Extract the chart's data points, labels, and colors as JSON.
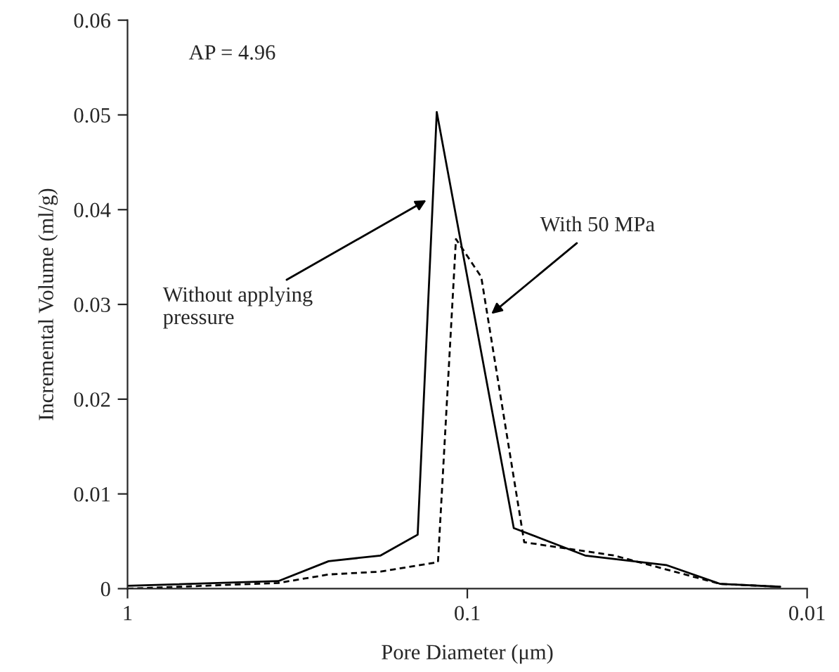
{
  "chart_data": {
    "type": "line",
    "xlabel": "Pore Diameter (μm)",
    "ylabel": "Incremental Volume (ml/g)",
    "log": "x",
    "xlim": [
      1,
      0.01
    ],
    "xticks": [
      1,
      0.1,
      0.01
    ],
    "ylim": [
      0,
      0.06
    ],
    "yticks": [
      0,
      0.01,
      0.02,
      0.03,
      0.04,
      0.05,
      0.06
    ],
    "grid": false,
    "marker": "none",
    "series": [
      {
        "color": "#000000",
        "line_style": "solid",
        "x": [
          1,
          0.36,
          0.256,
          0.18,
          0.14,
          0.123,
          0.073,
          0.045,
          0.026,
          0.018,
          0.012
        ],
        "values": [
          0.0003,
          0.0008,
          0.0029,
          0.0035,
          0.0057,
          0.0503,
          0.0064,
          0.0035,
          0.0025,
          0.0005,
          0.0002
        ]
      },
      {
        "color": "#000000",
        "line_style": "dashed",
        "x": [
          1,
          0.36,
          0.256,
          0.18,
          0.122,
          0.108,
          0.091,
          0.068,
          0.037,
          0.018,
          0.012
        ],
        "values": [
          0.0,
          0.0006,
          0.0015,
          0.0018,
          0.0028,
          0.0369,
          0.0329,
          0.0049,
          0.0035,
          0.0005,
          0.0002
        ]
      }
    ],
    "annotations": [
      "AP = 4.96",
      {
        "text": "Without applying\npressure",
        "x": 0.132,
        "y": 0.041
      },
      {
        "text": "With 50 MPa",
        "x": 0.085,
        "y": 0.029
      }
    ]
  }
}
